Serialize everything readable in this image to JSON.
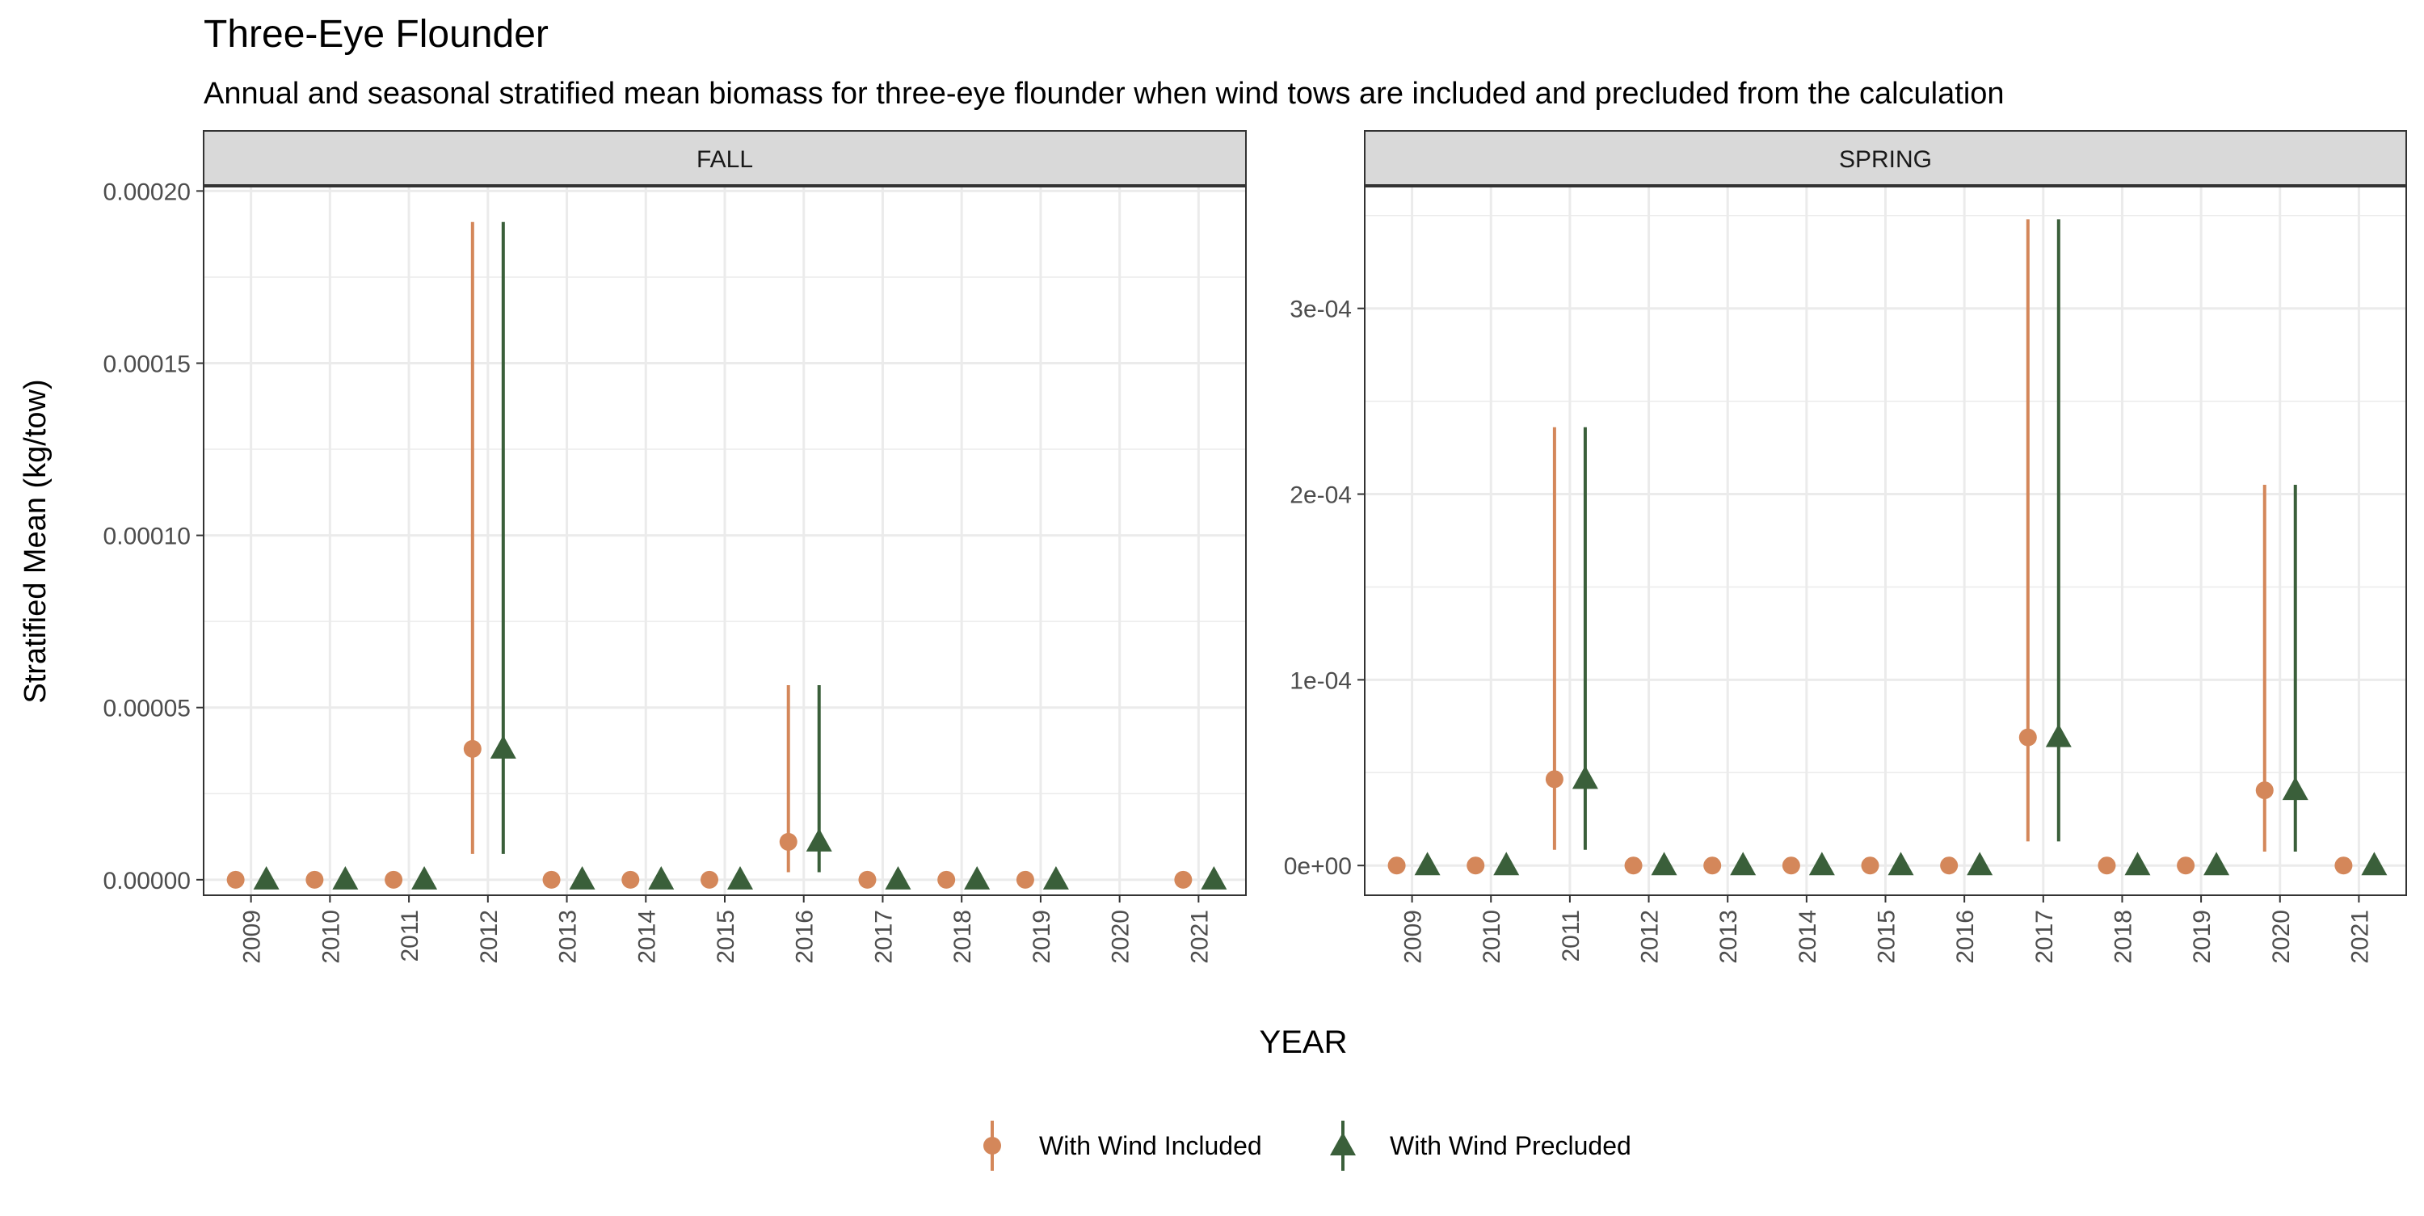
{
  "chart_data": {
    "type": "scatter",
    "title": "Three-Eye Flounder",
    "subtitle": "Annual and seasonal stratified mean biomass for three-eye flounder when wind tows are included and precluded from the calculation",
    "xlabel": "YEAR",
    "ylabel": "Stratified Mean (kg/tow)",
    "categories": [
      "2009",
      "2010",
      "2011",
      "2012",
      "2013",
      "2014",
      "2015",
      "2016",
      "2017",
      "2018",
      "2019",
      "2020",
      "2021"
    ],
    "legend_position": "bottom",
    "grid": true,
    "series_styles": [
      {
        "name": "With Wind Included",
        "color": "#D4875A",
        "shape": "circle"
      },
      {
        "name": "With Wind Precluded",
        "color": "#3A5F3A",
        "shape": "triangle"
      }
    ],
    "panels": [
      {
        "name": "FALL",
        "ylim": [
          -4.5e-06,
          0.0002015
        ],
        "yticks": [
          0,
          5e-05,
          0.0001,
          0.00015,
          0.0002
        ],
        "ytick_labels": [
          "0.00000",
          "0.00005",
          "0.00010",
          "0.00015",
          "0.00020"
        ],
        "series": [
          {
            "name": "With Wind Included",
            "points": [
              {
                "x": "2009",
                "y": 0,
                "ymin": 0,
                "ymax": 0
              },
              {
                "x": "2010",
                "y": 0,
                "ymin": 0,
                "ymax": 0
              },
              {
                "x": "2011",
                "y": 0,
                "ymin": 0,
                "ymax": 0
              },
              {
                "x": "2012",
                "y": 3.8e-05,
                "ymin": 7.5e-06,
                "ymax": 0.000191
              },
              {
                "x": "2013",
                "y": 0,
                "ymin": 0,
                "ymax": 0
              },
              {
                "x": "2014",
                "y": 0,
                "ymin": 0,
                "ymax": 0
              },
              {
                "x": "2015",
                "y": 0,
                "ymin": 0,
                "ymax": 0
              },
              {
                "x": "2016",
                "y": 1.1e-05,
                "ymin": 2.2e-06,
                "ymax": 5.65e-05
              },
              {
                "x": "2017",
                "y": 0,
                "ymin": 0,
                "ymax": 0
              },
              {
                "x": "2018",
                "y": 0,
                "ymin": 0,
                "ymax": 0
              },
              {
                "x": "2019",
                "y": 0,
                "ymin": 0,
                "ymax": 0
              },
              {
                "x": "2021",
                "y": 0,
                "ymin": 0,
                "ymax": 0
              }
            ]
          },
          {
            "name": "With Wind Precluded",
            "points": [
              {
                "x": "2009",
                "y": 0,
                "ymin": 0,
                "ymax": 0
              },
              {
                "x": "2010",
                "y": 0,
                "ymin": 0,
                "ymax": 0
              },
              {
                "x": "2011",
                "y": 0,
                "ymin": 0,
                "ymax": 0
              },
              {
                "x": "2012",
                "y": 3.8e-05,
                "ymin": 7.5e-06,
                "ymax": 0.000191
              },
              {
                "x": "2013",
                "y": 0,
                "ymin": 0,
                "ymax": 0
              },
              {
                "x": "2014",
                "y": 0,
                "ymin": 0,
                "ymax": 0
              },
              {
                "x": "2015",
                "y": 0,
                "ymin": 0,
                "ymax": 0
              },
              {
                "x": "2016",
                "y": 1.1e-05,
                "ymin": 2.2e-06,
                "ymax": 5.65e-05
              },
              {
                "x": "2017",
                "y": 0,
                "ymin": 0,
                "ymax": 0
              },
              {
                "x": "2018",
                "y": 0,
                "ymin": 0,
                "ymax": 0
              },
              {
                "x": "2019",
                "y": 0,
                "ymin": 0,
                "ymax": 0
              },
              {
                "x": "2021",
                "y": 0,
                "ymin": 0,
                "ymax": 0
              }
            ]
          }
        ]
      },
      {
        "name": "SPRING",
        "ylim": [
          -1.6e-05,
          0.000366
        ],
        "yticks": [
          0,
          0.0001,
          0.0002,
          0.0003
        ],
        "ytick_labels": [
          "0e+00",
          "1e-04",
          "2e-04",
          "3e-04"
        ],
        "series": [
          {
            "name": "With Wind Included",
            "points": [
              {
                "x": "2009",
                "y": 0,
                "ymin": 0,
                "ymax": 0
              },
              {
                "x": "2010",
                "y": 0,
                "ymin": 0,
                "ymax": 0
              },
              {
                "x": "2011",
                "y": 4.65e-05,
                "ymin": 8.5e-06,
                "ymax": 0.000236
              },
              {
                "x": "2012",
                "y": 0,
                "ymin": 0,
                "ymax": 0
              },
              {
                "x": "2013",
                "y": 0,
                "ymin": 0,
                "ymax": 0
              },
              {
                "x": "2014",
                "y": 0,
                "ymin": 0,
                "ymax": 0
              },
              {
                "x": "2015",
                "y": 0,
                "ymin": 0,
                "ymax": 0
              },
              {
                "x": "2016",
                "y": 0,
                "ymin": 0,
                "ymax": 0
              },
              {
                "x": "2017",
                "y": 6.9e-05,
                "ymin": 1.3e-05,
                "ymax": 0.000348
              },
              {
                "x": "2018",
                "y": 0,
                "ymin": 0,
                "ymax": 0
              },
              {
                "x": "2019",
                "y": 0,
                "ymin": 0,
                "ymax": 0
              },
              {
                "x": "2020",
                "y": 4.05e-05,
                "ymin": 7.5e-06,
                "ymax": 0.000205
              },
              {
                "x": "2021",
                "y": 0,
                "ymin": 0,
                "ymax": 0
              }
            ]
          },
          {
            "name": "With Wind Precluded",
            "points": [
              {
                "x": "2009",
                "y": 0,
                "ymin": 0,
                "ymax": 0
              },
              {
                "x": "2010",
                "y": 0,
                "ymin": 0,
                "ymax": 0
              },
              {
                "x": "2011",
                "y": 4.65e-05,
                "ymin": 8.5e-06,
                "ymax": 0.000236
              },
              {
                "x": "2012",
                "y": 0,
                "ymin": 0,
                "ymax": 0
              },
              {
                "x": "2013",
                "y": 0,
                "ymin": 0,
                "ymax": 0
              },
              {
                "x": "2014",
                "y": 0,
                "ymin": 0,
                "ymax": 0
              },
              {
                "x": "2015",
                "y": 0,
                "ymin": 0,
                "ymax": 0
              },
              {
                "x": "2016",
                "y": 0,
                "ymin": 0,
                "ymax": 0
              },
              {
                "x": "2017",
                "y": 6.9e-05,
                "ymin": 1.3e-05,
                "ymax": 0.000348
              },
              {
                "x": "2018",
                "y": 0,
                "ymin": 0,
                "ymax": 0
              },
              {
                "x": "2019",
                "y": 0,
                "ymin": 0,
                "ymax": 0
              },
              {
                "x": "2020",
                "y": 4.05e-05,
                "ymin": 7.5e-06,
                "ymax": 0.000205
              },
              {
                "x": "2021",
                "y": 0,
                "ymin": 0,
                "ymax": 0
              }
            ]
          }
        ]
      }
    ]
  }
}
